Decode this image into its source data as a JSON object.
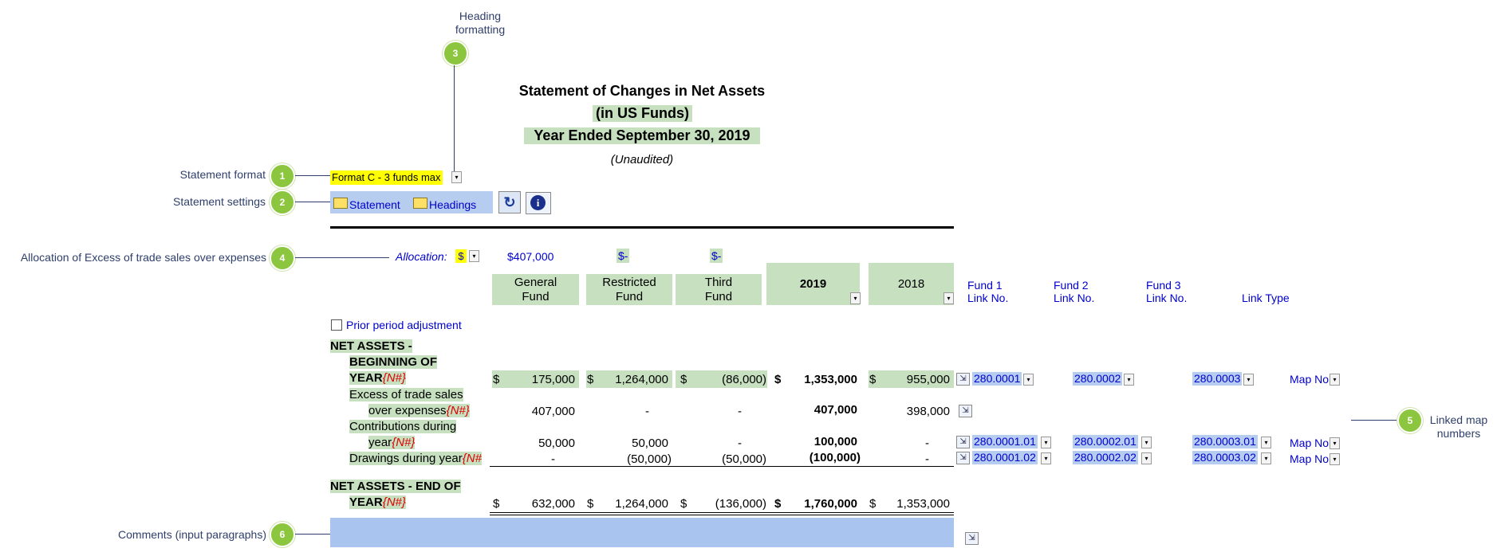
{
  "callouts": {
    "c3_label_line1": "Heading",
    "c3_label_line2": "formatting",
    "c1_label": "Statement format",
    "c2_label": "Statement settings",
    "c4_label": "Allocation of Excess of trade sales over expenses",
    "c5_label_line1": "Linked map",
    "c5_label_line2": "numbers",
    "c6_label": "Comments (input paragraphs)",
    "n1": "1",
    "n2": "2",
    "n3": "3",
    "n4": "4",
    "n5": "5",
    "n6": "6"
  },
  "header": {
    "title": "Statement of Changes in Net Assets",
    "subtitle": "(in US Funds)",
    "period": "Year Ended September 30, 2019",
    "status": "(Unaudited)"
  },
  "controls": {
    "format_value": "Format C - 3 funds max",
    "statement_label": "Statement",
    "headings_label": "Headings",
    "allocation_label": "Allocation:",
    "allocation_symbol": "$",
    "alloc_general": "$407,000",
    "alloc_restricted": "$-",
    "alloc_third": "$-",
    "prior_period_label": "Prior period adjustment"
  },
  "columns": {
    "general_1": "General",
    "general_2": "Fund",
    "restricted_1": "Restricted",
    "restricted_2": "Fund",
    "third_1": "Third",
    "third_2": "Fund",
    "y2019": "2019",
    "y2018": "2018",
    "fund1_1": "Fund 1",
    "fund1_2": "Link No.",
    "fund2_1": "Fund 2",
    "fund2_2": "Link No.",
    "fund3_1": "Fund 3",
    "fund3_2": "Link No.",
    "link_type": "Link Type"
  },
  "rows": {
    "begin_l1": "NET ASSETS -",
    "begin_l2": "BEGINNING OF",
    "begin_l3": "YEAR",
    "begin_tag": "{N#}",
    "begin": {
      "d1": "$",
      "general": "175,000",
      "d2": "$",
      "restricted": "1,264,000",
      "d3": "$",
      "third": "(86,000)",
      "d4": "$",
      "y2019": "1,353,000",
      "d5": "$",
      "y2018": "955,000",
      "link1": "280.0001",
      "link2": "280.0002",
      "link3": "280.0003",
      "map": "Map No"
    },
    "excess_l1": "Excess of trade sales",
    "excess_l2": "over expenses",
    "excess_tag": "{N#}",
    "excess": {
      "general": "407,000",
      "restricted": "-",
      "third": "-",
      "y2019": "407,000",
      "y2018": "398,000"
    },
    "contrib_l1": "Contributions during",
    "contrib_l2": "year",
    "contrib_tag": "{N#}",
    "contrib": {
      "general": "50,000",
      "restricted": "50,000",
      "third": "-",
      "y2019": "100,000",
      "y2018": "-",
      "link1": "280.0001.01",
      "link2": "280.0002.01",
      "link3": "280.0003.01",
      "map": "Map No"
    },
    "draw_l1": "Drawings during year",
    "draw_tag": "{N#",
    "draw": {
      "general": "-",
      "restricted": "(50,000)",
      "third": "(50,000)",
      "y2019": "(100,000)",
      "y2018": "-",
      "link1": "280.0001.02",
      "link2": "280.0002.02",
      "link3": "280.0003.02",
      "map": "Map No"
    },
    "end_l1": "NET ASSETS - END OF",
    "end_l2": "YEAR",
    "end_tag": "{N#}",
    "end": {
      "d1": "$",
      "general": "632,000",
      "d2": "$",
      "restricted": "1,264,000",
      "d3": "$",
      "third": "(136,000)",
      "d4": "$",
      "y2019": "1,760,000",
      "d5": "$",
      "y2018": "1,353,000"
    }
  },
  "icons": {
    "dropdown": "▾",
    "link": "⇲",
    "refresh": "↻",
    "info": "i"
  }
}
